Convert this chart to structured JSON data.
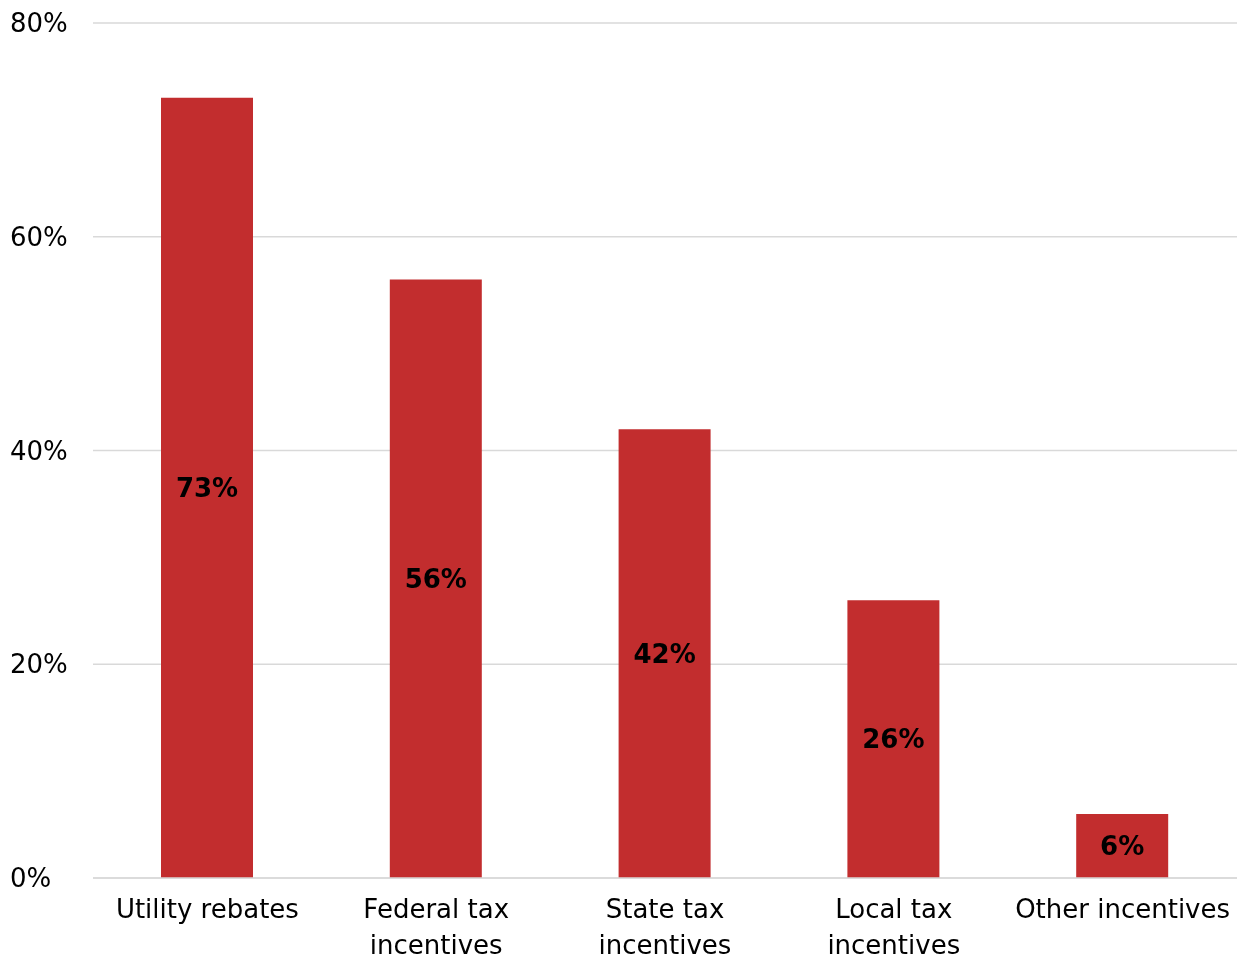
{
  "chart_data": {
    "type": "bar",
    "categories": [
      "Utility rebates",
      "Federal tax incentives",
      "State tax incentives",
      "Local tax incentives",
      "Other incentives"
    ],
    "values": [
      73,
      56,
      42,
      26,
      6
    ],
    "value_labels": [
      "73%",
      "56%",
      "42%",
      "26%",
      "6%"
    ],
    "color": "#c22d2e",
    "ylim": [
      0,
      80
    ],
    "yticks": [
      {
        "value": 0,
        "label": "0%"
      },
      {
        "value": 20,
        "label": "20%"
      },
      {
        "value": 40,
        "label": "40%"
      },
      {
        "value": 60,
        "label": "60%"
      },
      {
        "value": 80,
        "label": "80%"
      }
    ],
    "grid": "y"
  }
}
